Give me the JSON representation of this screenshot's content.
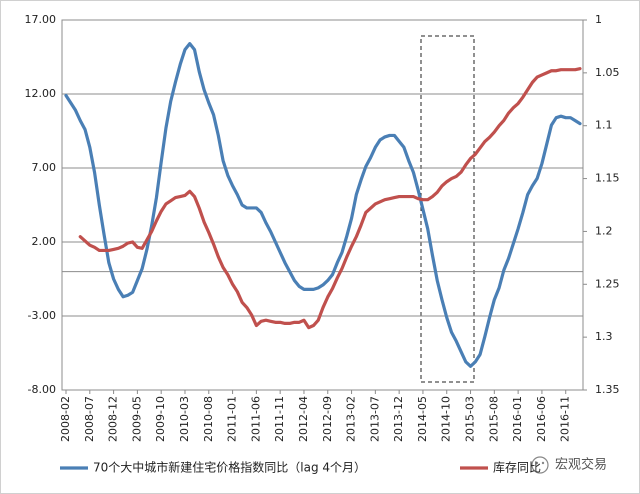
{
  "chart_data": {
    "type": "line",
    "categories": [
      "2008-02",
      null,
      null,
      null,
      null,
      "2008-07",
      null,
      null,
      null,
      null,
      "2008-12",
      null,
      null,
      null,
      null,
      "2009-05",
      null,
      null,
      null,
      null,
      "2009-10",
      null,
      null,
      null,
      null,
      "2010-03",
      null,
      null,
      null,
      null,
      "2010-08",
      null,
      null,
      null,
      null,
      "2011-01",
      null,
      null,
      null,
      null,
      "2011-06",
      null,
      null,
      null,
      null,
      "2011-11",
      null,
      null,
      null,
      null,
      "2012-04",
      null,
      null,
      null,
      null,
      "2012-09",
      null,
      null,
      null,
      null,
      "2013-02",
      null,
      null,
      null,
      null,
      "2013-07",
      null,
      null,
      null,
      null,
      "2013-12",
      null,
      null,
      null,
      null,
      "2014-05",
      null,
      null,
      null,
      null,
      "2014-10",
      null,
      null,
      null,
      null,
      "2015-03",
      null,
      null,
      null,
      null,
      "2015-08",
      null,
      null,
      null,
      null,
      "2016-01",
      null,
      null,
      null,
      null,
      "2016-06",
      null,
      null,
      null,
      null,
      "2016-11",
      null,
      null,
      null
    ],
    "series": [
      {
        "name": "70个大中城市新建住宅价格指数同比（lag 4个月）",
        "color": "#4a7fb5",
        "values": [
          11.9,
          11.4,
          10.9,
          10.2,
          9.6,
          8.4,
          6.7,
          4.5,
          2.5,
          0.6,
          -0.5,
          -1.2,
          -1.7,
          -1.6,
          -1.4,
          -0.6,
          0.2,
          1.5,
          3.1,
          5.0,
          7.4,
          9.7,
          11.5,
          12.8,
          14.0,
          15.0,
          15.4,
          15.0,
          13.5,
          12.3,
          11.4,
          10.6,
          9.2,
          7.5,
          6.5,
          5.8,
          5.2,
          4.5,
          4.3,
          4.3,
          4.3,
          4.0,
          3.3,
          2.7,
          2.0,
          1.3,
          0.6,
          0.0,
          -0.6,
          -1.0,
          -1.2,
          -1.2,
          -1.2,
          -1.1,
          -0.9,
          -0.6,
          -0.2,
          0.6,
          1.3,
          2.4,
          3.6,
          5.2,
          6.2,
          7.1,
          7.7,
          8.4,
          8.9,
          9.1,
          9.2,
          9.2,
          8.8,
          8.4,
          7.5,
          6.7,
          5.5,
          4.2,
          2.9,
          1.1,
          -0.6,
          -1.9,
          -3.1,
          -4.1,
          -4.7,
          -5.4,
          -6.1,
          -6.4,
          -6.1,
          -5.6,
          -4.4,
          -3.1,
          -1.9,
          -1.1,
          0.1,
          0.9,
          1.9,
          2.9,
          4.0,
          5.2,
          5.8,
          6.3,
          7.3,
          8.6,
          9.9,
          10.4,
          10.5,
          10.4,
          10.4,
          10.2,
          10.0
        ]
      },
      {
        "name": "库存同比",
        "color": "#c0504d",
        "axis": "y2",
        "values": [
          null,
          null,
          null,
          1.205,
          1.209,
          1.213,
          1.215,
          1.218,
          1.218,
          1.218,
          1.217,
          1.216,
          1.214,
          1.211,
          1.21,
          1.215,
          1.216,
          1.208,
          1.2,
          1.19,
          1.181,
          1.174,
          1.171,
          1.168,
          1.167,
          1.166,
          1.162,
          1.167,
          1.178,
          1.191,
          1.201,
          1.212,
          1.224,
          1.234,
          1.241,
          1.25,
          1.257,
          1.267,
          1.272,
          1.279,
          1.289,
          1.285,
          1.284,
          1.285,
          1.286,
          1.286,
          1.287,
          1.287,
          1.286,
          1.286,
          1.284,
          1.291,
          1.289,
          1.284,
          1.272,
          1.262,
          1.254,
          1.244,
          1.235,
          1.224,
          1.214,
          1.205,
          1.194,
          1.182,
          1.178,
          1.174,
          1.172,
          1.17,
          1.169,
          1.168,
          1.167,
          1.167,
          1.167,
          1.167,
          1.169,
          1.17,
          1.17,
          1.167,
          1.163,
          1.157,
          1.153,
          1.15,
          1.148,
          1.144,
          1.137,
          1.131,
          1.127,
          1.121,
          1.115,
          1.111,
          1.106,
          1.1,
          1.095,
          1.088,
          1.083,
          1.079,
          1.073,
          1.066,
          1.059,
          1.054,
          1.052,
          1.05,
          1.048,
          1.048,
          1.047,
          1.047,
          1.047,
          1.047,
          1.046
        ]
      }
    ],
    "ylim": [
      -8,
      17
    ],
    "yticks": [
      {
        "value": 17,
        "label": "17.00"
      },
      {
        "value": 12,
        "label": "12.00"
      },
      {
        "value": 7,
        "label": "7.00"
      },
      {
        "value": 2,
        "label": "2.00"
      },
      {
        "value": -3,
        "label": "-3.00"
      },
      {
        "value": -8,
        "label": "-8.00"
      }
    ],
    "y2lim": [
      1.35,
      1
    ],
    "y2ticks": [
      1,
      1.05,
      1.1,
      1.15,
      1.2,
      1.25,
      1.3,
      1.35
    ],
    "grid": true
  },
  "watermark": "宏观交易"
}
